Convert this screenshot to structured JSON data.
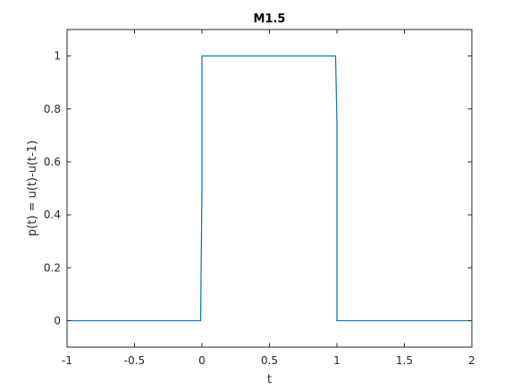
{
  "chart_data": {
    "type": "line",
    "title": "M1.5",
    "xlabel": "t",
    "ylabel": "p(t) = u(t)-u(t-1)",
    "xlim": [
      -1,
      2
    ],
    "ylim": [
      -0.1,
      1.1
    ],
    "xticks": [
      -1,
      -0.5,
      0,
      0.5,
      1,
      1.5,
      2
    ],
    "xtick_labels": [
      "-1",
      "-0.5",
      "0",
      "0.5",
      "1",
      "1.5",
      "2"
    ],
    "yticks": [
      0,
      0.2,
      0.4,
      0.6,
      0.8,
      1
    ],
    "ytick_labels": [
      "0",
      "0.2",
      "0.4",
      "0.6",
      "0.8",
      "1"
    ],
    "grid": false,
    "series": [
      {
        "color": "#0072bd",
        "x": [
          -1,
          -0.01,
          0,
          0,
          0.99,
          1,
          1,
          2
        ],
        "y": [
          0,
          0,
          0.5,
          1,
          1,
          0.75,
          0,
          0
        ]
      }
    ]
  }
}
